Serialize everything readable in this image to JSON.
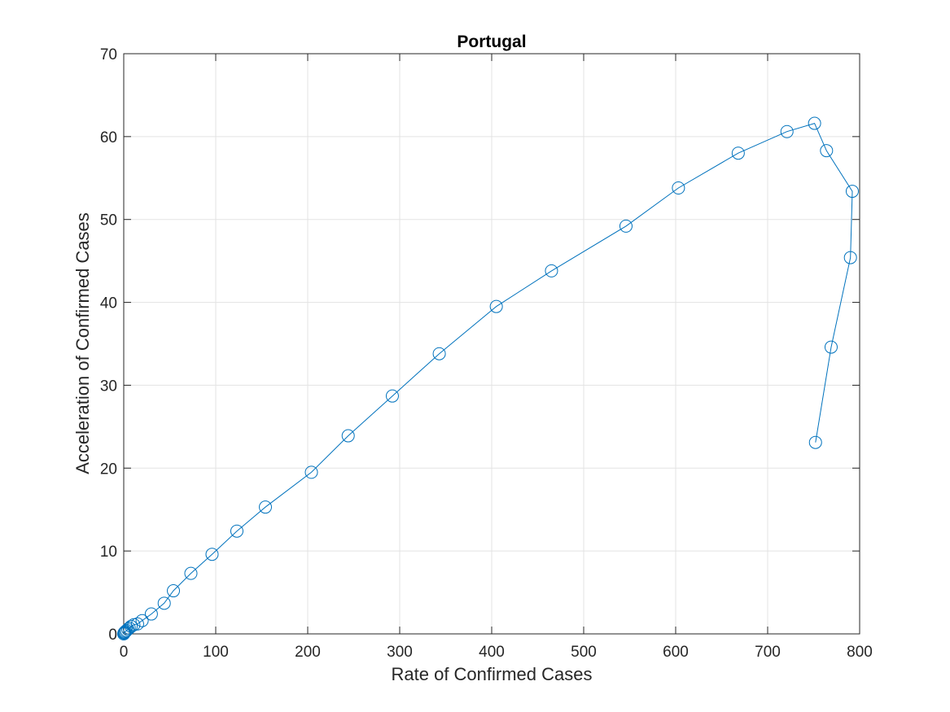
{
  "chart_data": {
    "type": "line",
    "title": "Portugal",
    "xlabel": "Rate of Confirmed Cases",
    "ylabel": "Acceleration of Confirmed Cases",
    "xlim": [
      0,
      800
    ],
    "ylim": [
      0,
      70
    ],
    "xticks": [
      0,
      100,
      200,
      300,
      400,
      500,
      600,
      700,
      800
    ],
    "yticks": [
      0,
      10,
      20,
      30,
      40,
      50,
      60,
      70
    ],
    "grid": true,
    "legend": "none",
    "marker": "circle",
    "line_color": "#0072BD",
    "series": [
      {
        "x": [
          0,
          0.3,
          0.7,
          1.2,
          2,
          3,
          4.5,
          6,
          8,
          11,
          15,
          20,
          30,
          44,
          54,
          73,
          96,
          123,
          154,
          204,
          244,
          292,
          343,
          405,
          465,
          546,
          603,
          668,
          721,
          751,
          764,
          792,
          790,
          769,
          752
        ],
        "y": [
          0,
          0.1,
          0.15,
          0.2,
          0.3,
          0.4,
          0.55,
          0.7,
          0.9,
          1.1,
          1.2,
          1.6,
          2.4,
          3.7,
          5.2,
          7.3,
          9.6,
          12.4,
          15.3,
          19.5,
          23.9,
          28.7,
          33.8,
          39.5,
          43.8,
          49.2,
          53.8,
          58.0,
          60.6,
          61.6,
          58.3,
          53.4,
          45.4,
          34.6,
          23.1
        ]
      }
    ]
  }
}
